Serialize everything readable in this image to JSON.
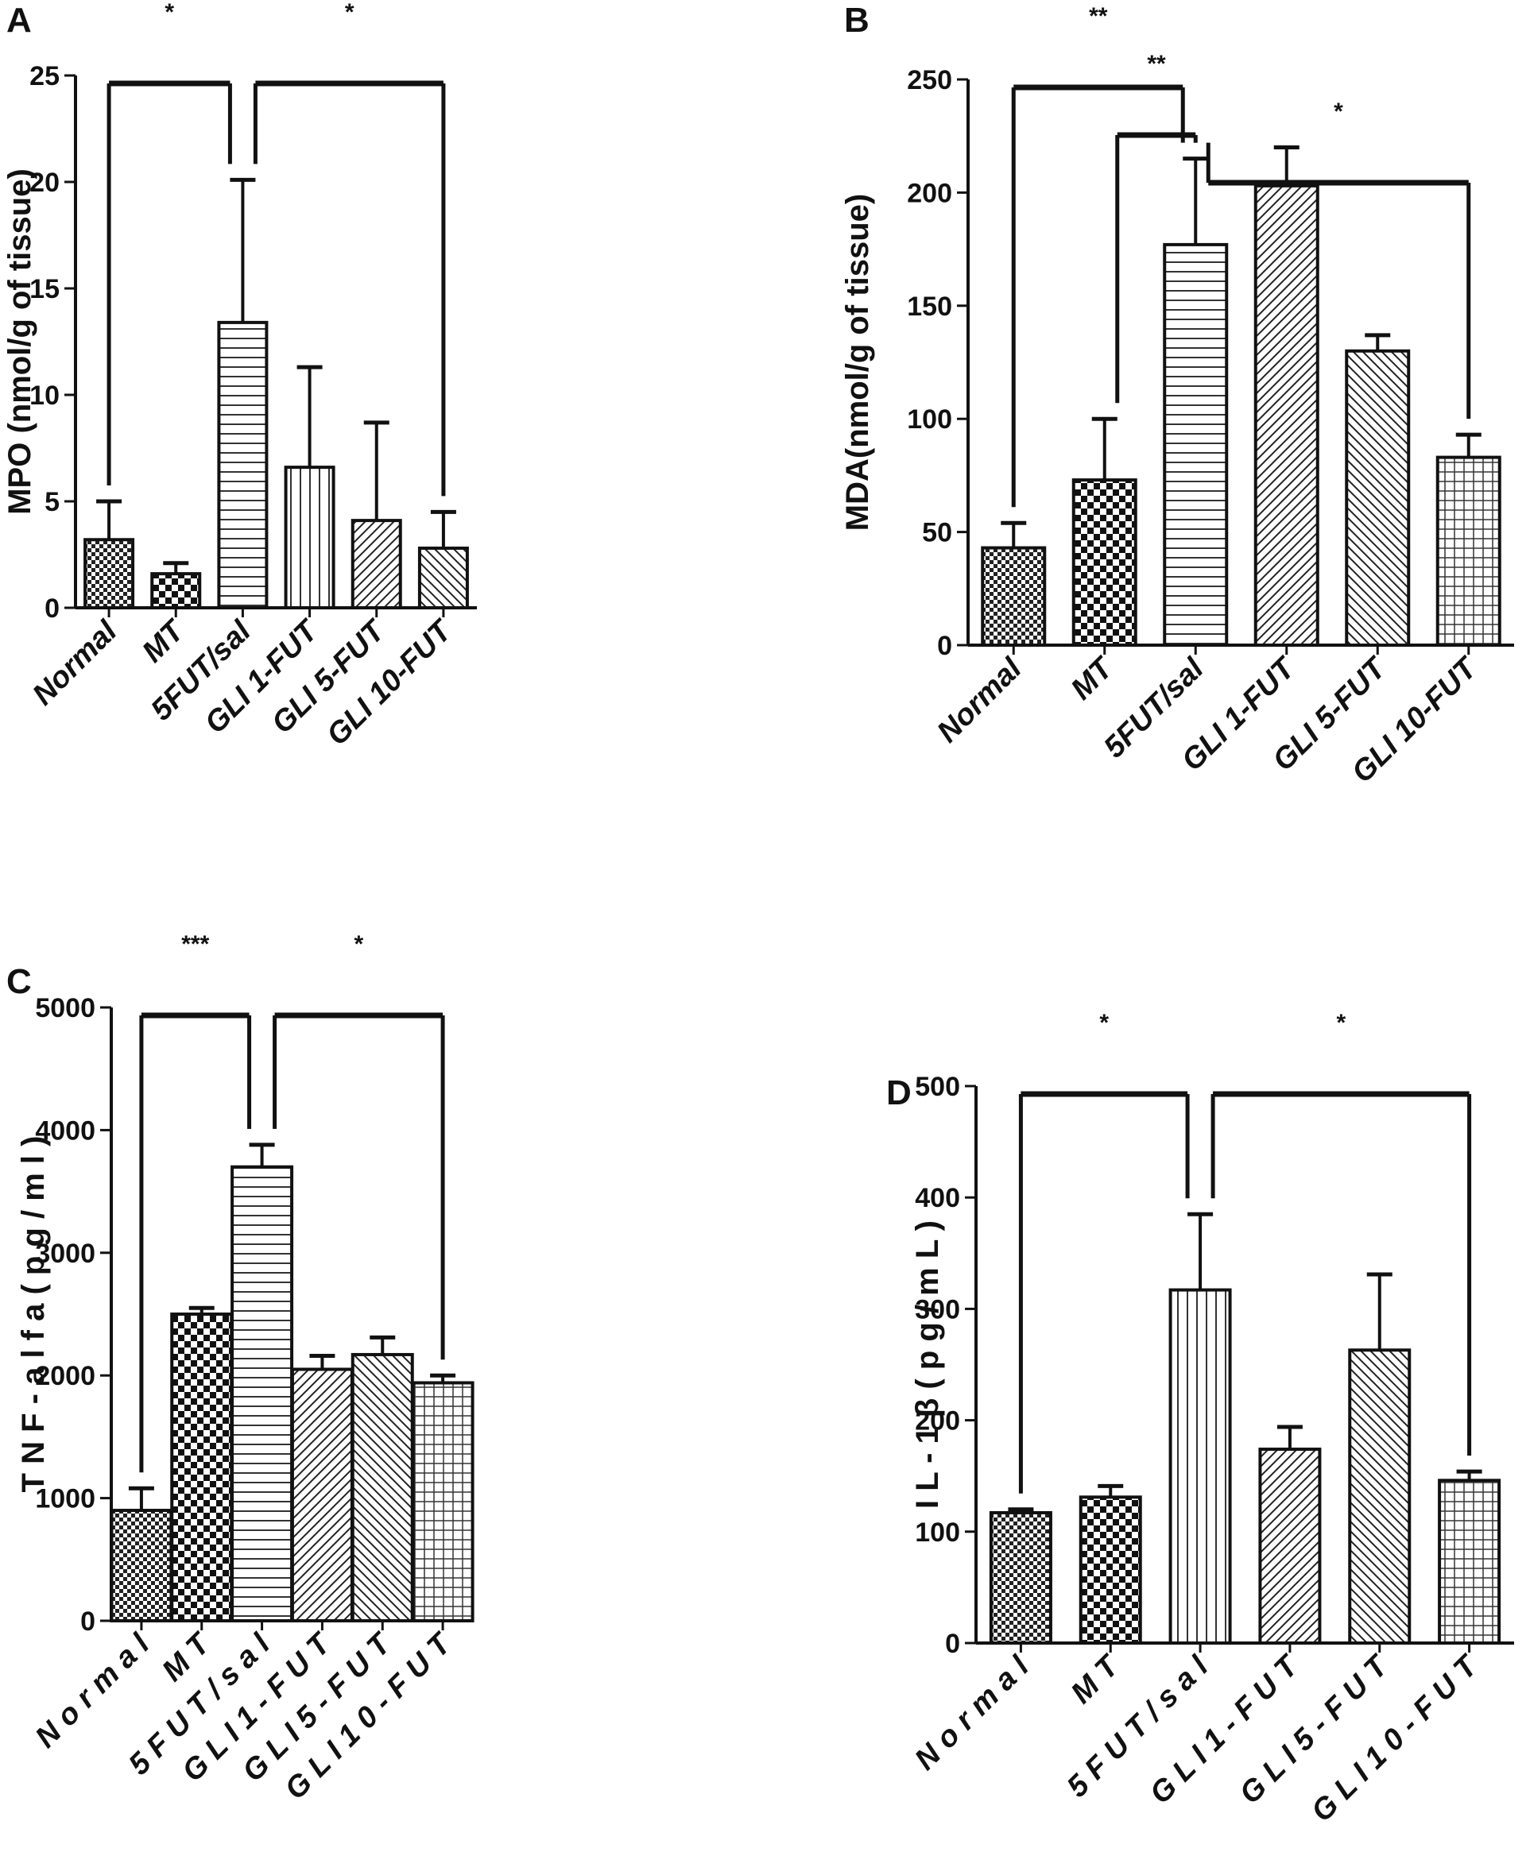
{
  "chart_data": [
    {
      "id": "A",
      "type": "bar",
      "panel_label": "A",
      "ylabel": "MPO (nmol/g of tissue)",
      "ylim": [
        0,
        25
      ],
      "yticks": [
        0,
        5,
        10,
        15,
        20,
        25
      ],
      "categories": [
        "Normal",
        "MT",
        "5FUT/sal",
        "GLI 1-FUT",
        "GLI 5-FUT",
        "GLI 10-FUT"
      ],
      "values": [
        3.2,
        1.6,
        13.4,
        6.6,
        4.1,
        2.8
      ],
      "errors": [
        1.8,
        0.5,
        6.7,
        4.7,
        4.6,
        1.7
      ],
      "annotations": [
        {
          "text": "*",
          "from": "Normal",
          "to": "5FUT/sal"
        },
        {
          "text": "*",
          "from": "5FUT/sal",
          "to": "GLI 10-FUT"
        }
      ]
    },
    {
      "id": "B",
      "type": "bar",
      "panel_label": "B",
      "ylabel": "MDA(nmol/g of tissue)",
      "ylim": [
        0,
        250
      ],
      "yticks": [
        0,
        50,
        100,
        150,
        200,
        250
      ],
      "categories": [
        "Normal",
        "MT",
        "5FUT/sal",
        "GLI 1-FUT",
        "GLI 5-FUT",
        "GLI 10-FUT"
      ],
      "values": [
        43,
        73,
        177,
        203,
        130,
        83
      ],
      "errors": [
        11,
        27,
        38,
        17,
        7,
        10
      ],
      "annotations": [
        {
          "text": "**",
          "from": "Normal",
          "to": "5FUT/sal"
        },
        {
          "text": "**",
          "from": "MT",
          "to": "5FUT/sal"
        },
        {
          "text": "*",
          "from": "5FUT/sal",
          "to": "GLI 10-FUT"
        }
      ]
    },
    {
      "id": "C",
      "type": "bar",
      "panel_label": "C",
      "ylabel": "T N F - a l f a  ( p g / m l )",
      "ylim": [
        0,
        5000
      ],
      "yticks": [
        0,
        1000,
        2000,
        3000,
        4000,
        5000
      ],
      "categories": [
        "N o r m a l",
        "M T",
        "5 F U T / s a l",
        "G L I 1 - F U T",
        "G L I 5 - F U T",
        "G L I 1 0 - F U T"
      ],
      "values": [
        900,
        2500,
        3700,
        2050,
        2170,
        1940
      ],
      "errors": [
        180,
        50,
        180,
        110,
        140,
        60
      ],
      "annotations": [
        {
          "text": "***",
          "from": "N o r m a l",
          "to": "5 F U T / s a l"
        },
        {
          "text": "*",
          "from": "5 F U T / s a l",
          "to": "G L I 1 0 - F U T"
        }
      ]
    },
    {
      "id": "D",
      "type": "bar",
      "panel_label": "D",
      "ylabel": "I L - 1 β  ( p g / m L )",
      "ylim": [
        0,
        500
      ],
      "yticks": [
        0,
        100,
        200,
        300,
        400,
        500
      ],
      "categories": [
        "N o r m a l",
        "M T",
        "5 F U T / s a l",
        "G L I 1 - F U T",
        "G L I 5 - F U T",
        "G L I 1 0 - F U T"
      ],
      "values": [
        117,
        131,
        317,
        174,
        263,
        146
      ],
      "errors": [
        3,
        10,
        68,
        20,
        68,
        8
      ],
      "annotations": [
        {
          "text": "*",
          "from": "N o r m a l",
          "to": "5 F U T / s a l"
        },
        {
          "text": "*",
          "from": "5 F U T / s a l",
          "to": "G L I 1 0 - F U T"
        }
      ]
    }
  ]
}
